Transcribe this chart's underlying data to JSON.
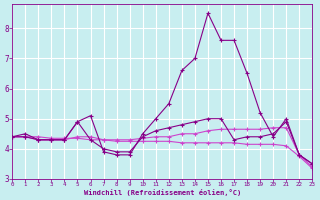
{
  "background_color": "#c8eef0",
  "grid_color": "#ffffff",
  "line_color_dark": "#880088",
  "line_color_light": "#cc44cc",
  "xlabel": "Windchill (Refroidissement éolien,°C)",
  "xlim": [
    0,
    23
  ],
  "ylim": [
    3.0,
    8.8
  ],
  "yticks": [
    3,
    4,
    5,
    6,
    7,
    8
  ],
  "xticks": [
    0,
    1,
    2,
    3,
    4,
    5,
    6,
    7,
    8,
    9,
    10,
    11,
    12,
    13,
    14,
    15,
    16,
    17,
    18,
    19,
    20,
    21,
    22,
    23
  ],
  "series1_x": [
    0,
    1,
    2,
    3,
    4,
    5,
    6,
    7,
    8,
    9,
    10,
    11,
    12,
    13,
    14,
    15,
    16,
    17,
    18,
    19,
    20,
    21,
    22,
    23
  ],
  "series1_y": [
    4.4,
    4.5,
    4.3,
    4.3,
    4.3,
    4.9,
    5.1,
    3.9,
    3.8,
    3.8,
    4.5,
    5.0,
    5.5,
    6.6,
    7.0,
    8.5,
    7.6,
    7.6,
    6.5,
    5.2,
    4.4,
    5.0,
    3.8,
    3.5
  ],
  "series2_x": [
    0,
    1,
    2,
    3,
    4,
    5,
    6,
    7,
    8,
    9,
    10,
    11,
    12,
    13,
    14,
    15,
    16,
    17,
    18,
    19,
    20,
    21,
    22,
    23
  ],
  "series2_y": [
    4.4,
    4.4,
    4.3,
    4.3,
    4.3,
    4.9,
    4.3,
    4.0,
    3.9,
    3.9,
    4.4,
    4.6,
    4.7,
    4.8,
    4.9,
    5.0,
    5.0,
    4.3,
    4.4,
    4.4,
    4.5,
    4.9,
    3.8,
    3.5
  ],
  "series3_x": [
    0,
    1,
    2,
    3,
    4,
    5,
    6,
    7,
    8,
    9,
    10,
    11,
    12,
    13,
    14,
    15,
    16,
    17,
    18,
    19,
    20,
    21,
    22,
    23
  ],
  "series3_y": [
    4.4,
    4.4,
    4.3,
    4.3,
    4.3,
    4.4,
    4.4,
    4.3,
    4.3,
    4.3,
    4.35,
    4.4,
    4.4,
    4.5,
    4.5,
    4.6,
    4.65,
    4.65,
    4.65,
    4.65,
    4.7,
    4.7,
    3.8,
    3.4
  ],
  "series4_x": [
    0,
    1,
    2,
    3,
    4,
    5,
    6,
    7,
    8,
    9,
    10,
    11,
    12,
    13,
    14,
    15,
    16,
    17,
    18,
    19,
    20,
    21,
    22,
    23
  ],
  "series4_y": [
    4.4,
    4.4,
    4.4,
    4.35,
    4.35,
    4.35,
    4.3,
    4.3,
    4.25,
    4.25,
    4.25,
    4.25,
    4.25,
    4.2,
    4.2,
    4.2,
    4.2,
    4.2,
    4.15,
    4.15,
    4.15,
    4.1,
    3.75,
    3.35
  ]
}
